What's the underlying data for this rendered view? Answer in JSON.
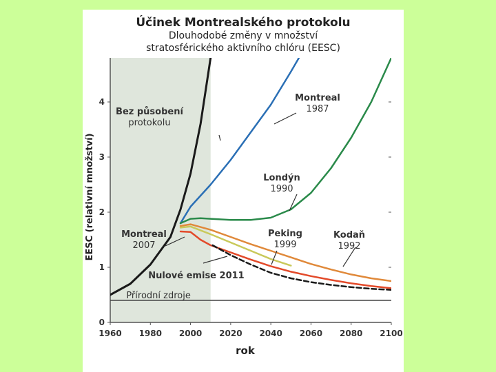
{
  "colors": {
    "page_background": "#ccff99",
    "card_background": "#ffffff",
    "shaded_region": "#dfe6dc",
    "baseline": "#444444",
    "no_protocol": "#1a1a1a",
    "montreal_1987": "#2a6fb5",
    "london_1990": "#2a8a4a",
    "copenhagen_1992": "#e0893a",
    "beijing_1999": "#c9c95a",
    "montreal_2007": "#e34a2a",
    "zero_emissions": "#1a1a1a"
  },
  "chart_data": {
    "type": "line",
    "title": "Účinek Montrealského protokolu",
    "subtitle_line1": "Dlouhodobé změny v množství",
    "subtitle_line2": "stratosférického aktivního chlóru (EESC)",
    "xlabel": "rok",
    "ylabel": "EESC (relativní množství)",
    "xlim": [
      1960,
      2100
    ],
    "ylim": [
      0,
      4.8
    ],
    "x_ticks": [
      "1960",
      "1980",
      "2000",
      "2020",
      "2040",
      "2060",
      "2080",
      "2100"
    ],
    "y_ticks": [
      "0",
      "1",
      "2",
      "3",
      "4"
    ],
    "shaded_x_range": [
      1960,
      2010
    ],
    "baseline": {
      "y": 0.4,
      "label": "Přírodní zdroje"
    },
    "series": [
      {
        "key": "no_protocol",
        "label_lines": [
          "Bez působení",
          "protokolu"
        ],
        "dashed": false,
        "x": [
          1960,
          1970,
          1980,
          1990,
          1995,
          2000,
          2005,
          2010
        ],
        "y": [
          0.5,
          0.7,
          1.05,
          1.55,
          2.05,
          2.7,
          3.6,
          4.8
        ]
      },
      {
        "key": "montreal_1987",
        "label_lines": [
          "Montreal",
          "1987"
        ],
        "dashed": false,
        "x": [
          1995,
          2000,
          2010,
          2020,
          2030,
          2040,
          2045,
          2050,
          2054
        ],
        "y": [
          1.8,
          2.1,
          2.5,
          2.95,
          3.45,
          3.95,
          4.25,
          4.55,
          4.8
        ]
      },
      {
        "key": "london_1990",
        "label_lines": [
          "Londýn",
          "1990"
        ],
        "dashed": false,
        "x": [
          1995,
          2000,
          2005,
          2010,
          2020,
          2030,
          2040,
          2050,
          2060,
          2070,
          2080,
          2090,
          2100
        ],
        "y": [
          1.8,
          1.88,
          1.89,
          1.88,
          1.86,
          1.86,
          1.9,
          2.05,
          2.35,
          2.8,
          3.35,
          4.0,
          4.8
        ]
      },
      {
        "key": "copenhagen_1992",
        "label_lines": [
          "Kodaň",
          "1992"
        ],
        "dashed": false,
        "x": [
          1995,
          2000,
          2010,
          2020,
          2030,
          2040,
          2050,
          2060,
          2070,
          2080,
          2090,
          2100
        ],
        "y": [
          1.75,
          1.78,
          1.68,
          1.55,
          1.42,
          1.3,
          1.18,
          1.06,
          0.96,
          0.87,
          0.8,
          0.75
        ]
      },
      {
        "key": "beijing_1999",
        "label_lines": [
          "Peking",
          "1999"
        ],
        "dashed": false,
        "x": [
          1995,
          2000,
          2010,
          2020,
          2030,
          2040,
          2050
        ],
        "y": [
          1.72,
          1.74,
          1.6,
          1.45,
          1.3,
          1.15,
          1.03
        ]
      },
      {
        "key": "montreal_2007",
        "label_lines": [
          "Montreal",
          "2007"
        ],
        "dashed": false,
        "x": [
          1995,
          2000,
          2005,
          2010,
          2020,
          2030,
          2040,
          2050,
          2060,
          2070,
          2080,
          2090,
          2100
        ],
        "y": [
          1.65,
          1.64,
          1.5,
          1.4,
          1.27,
          1.14,
          1.02,
          0.92,
          0.84,
          0.77,
          0.71,
          0.66,
          0.62
        ]
      },
      {
        "key": "zero_emissions",
        "label_lines": [
          "Nulové emise 2011"
        ],
        "dashed": true,
        "x": [
          2011,
          2020,
          2030,
          2040,
          2050,
          2060,
          2070,
          2080,
          2090,
          2100
        ],
        "y": [
          1.4,
          1.22,
          1.05,
          0.9,
          0.8,
          0.73,
          0.68,
          0.64,
          0.61,
          0.59
        ]
      }
    ]
  }
}
